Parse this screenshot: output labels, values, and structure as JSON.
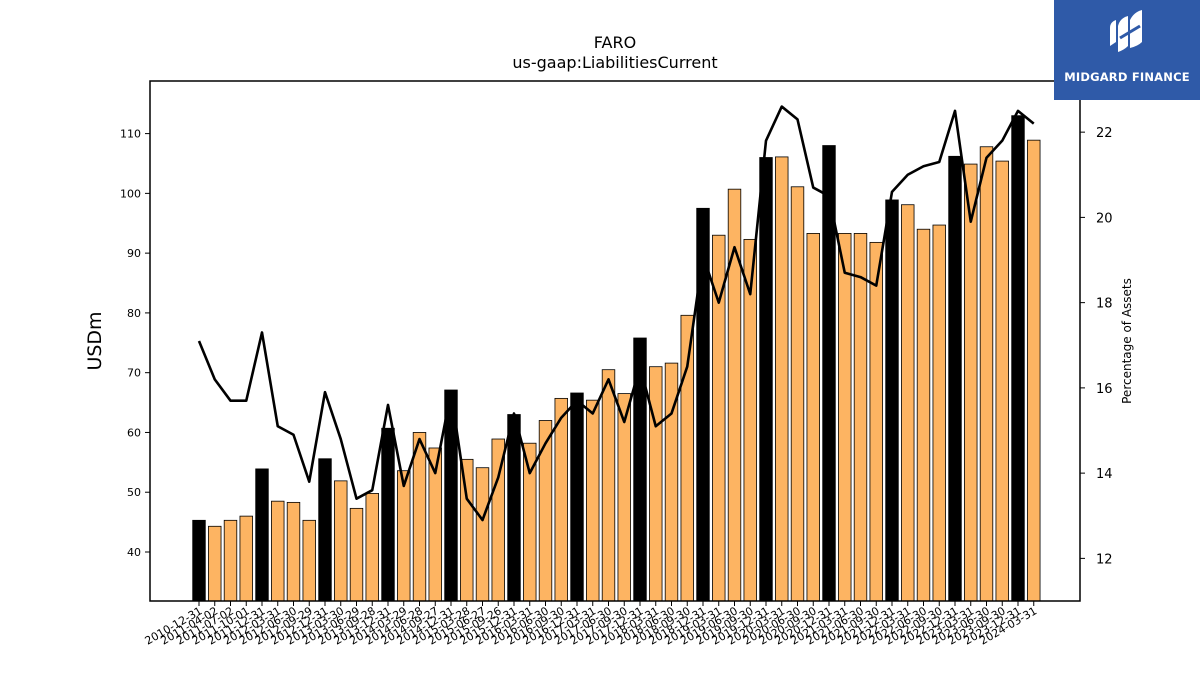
{
  "logo": {
    "text": "MIDGARD FINANCE",
    "icon": "midgard-logo-icon",
    "background": "#2f5aa8"
  },
  "chart_data": {
    "type": "bar",
    "title": "FARO",
    "subtitle": "us-gaap:LiabilitiesCurrent",
    "ylabel": "USDm",
    "y2label": "Percentage of Assets",
    "ylim": [
      31.8,
      118.8
    ],
    "y2lim": [
      11.0,
      23.2
    ],
    "yticks": [
      40,
      50,
      60,
      70,
      80,
      90,
      100,
      110
    ],
    "y2ticks": [
      12,
      14,
      16,
      18,
      20,
      22
    ],
    "colors": {
      "bar": "#fdb462",
      "highlight": "#000000",
      "line": "#000000"
    },
    "categories": [
      "2010-12-31",
      "2011-04-02",
      "2011-07-02",
      "2011-10-01",
      "2011-12-31",
      "2012-03-31",
      "2012-06-30",
      "2012-09-29",
      "2012-12-31",
      "2013-03-30",
      "2013-06-29",
      "2013-09-28",
      "2013-12-31",
      "2014-03-29",
      "2014-06-28",
      "2014-09-27",
      "2014-12-31",
      "2015-03-28",
      "2015-06-27",
      "2015-09-26",
      "2015-12-31",
      "2016-03-31",
      "2016-06-30",
      "2016-09-30",
      "2016-12-31",
      "2017-03-31",
      "2017-06-30",
      "2017-09-30",
      "2017-12-31",
      "2018-03-31",
      "2018-06-30",
      "2018-09-30",
      "2018-12-31",
      "2019-03-31",
      "2019-06-30",
      "2019-09-30",
      "2019-12-31",
      "2020-03-31",
      "2020-06-30",
      "2020-09-30",
      "2020-12-31",
      "2021-03-31",
      "2021-06-30",
      "2021-09-30",
      "2021-12-31",
      "2022-03-31",
      "2022-06-30",
      "2022-09-30",
      "2022-12-31",
      "2023-03-31",
      "2023-06-30",
      "2023-09-30",
      "2023-12-31",
      "2024-03-31"
    ],
    "series": [
      {
        "type": "bar",
        "values": [
          45.3,
          44.3,
          45.3,
          46.0,
          53.9,
          48.5,
          48.3,
          45.3,
          55.6,
          51.9,
          47.3,
          49.8,
          60.7,
          53.6,
          60.0,
          57.4,
          67.1,
          55.5,
          54.1,
          58.9,
          63.0,
          58.2,
          62.0,
          65.7,
          66.6,
          65.4,
          70.5,
          66.5,
          75.8,
          71.0,
          71.6,
          79.6,
          97.5,
          93.0,
          100.7,
          92.3,
          106.0,
          106.1,
          101.1,
          93.3,
          108.0,
          93.3,
          93.3,
          91.8,
          98.9,
          98.1,
          94.0,
          94.7,
          106.2,
          104.9,
          107.8,
          105.4,
          113.0,
          108.9
        ]
      },
      {
        "type": "line",
        "axis": "right",
        "values": [
          17.1,
          16.2,
          15.7,
          15.7,
          17.3,
          15.1,
          14.9,
          13.8,
          15.9,
          14.8,
          13.4,
          13.6,
          15.6,
          13.7,
          14.8,
          14.0,
          15.9,
          13.4,
          12.9,
          13.9,
          15.4,
          14.0,
          14.7,
          15.3,
          15.7,
          15.4,
          16.2,
          15.2,
          16.5,
          15.1,
          15.4,
          16.5,
          19.1,
          18.0,
          19.3,
          18.2,
          21.8,
          22.6,
          22.3,
          20.7,
          20.5,
          18.7,
          18.6,
          18.4,
          20.6,
          21.0,
          21.2,
          21.3,
          22.5,
          19.9,
          21.4,
          21.8,
          22.5,
          22.2
        ]
      }
    ],
    "highlight_indices": [
      0,
      4,
      8,
      12,
      16,
      20,
      24,
      28,
      32,
      36,
      40,
      44,
      48,
      52
    ],
    "grid": false
  }
}
